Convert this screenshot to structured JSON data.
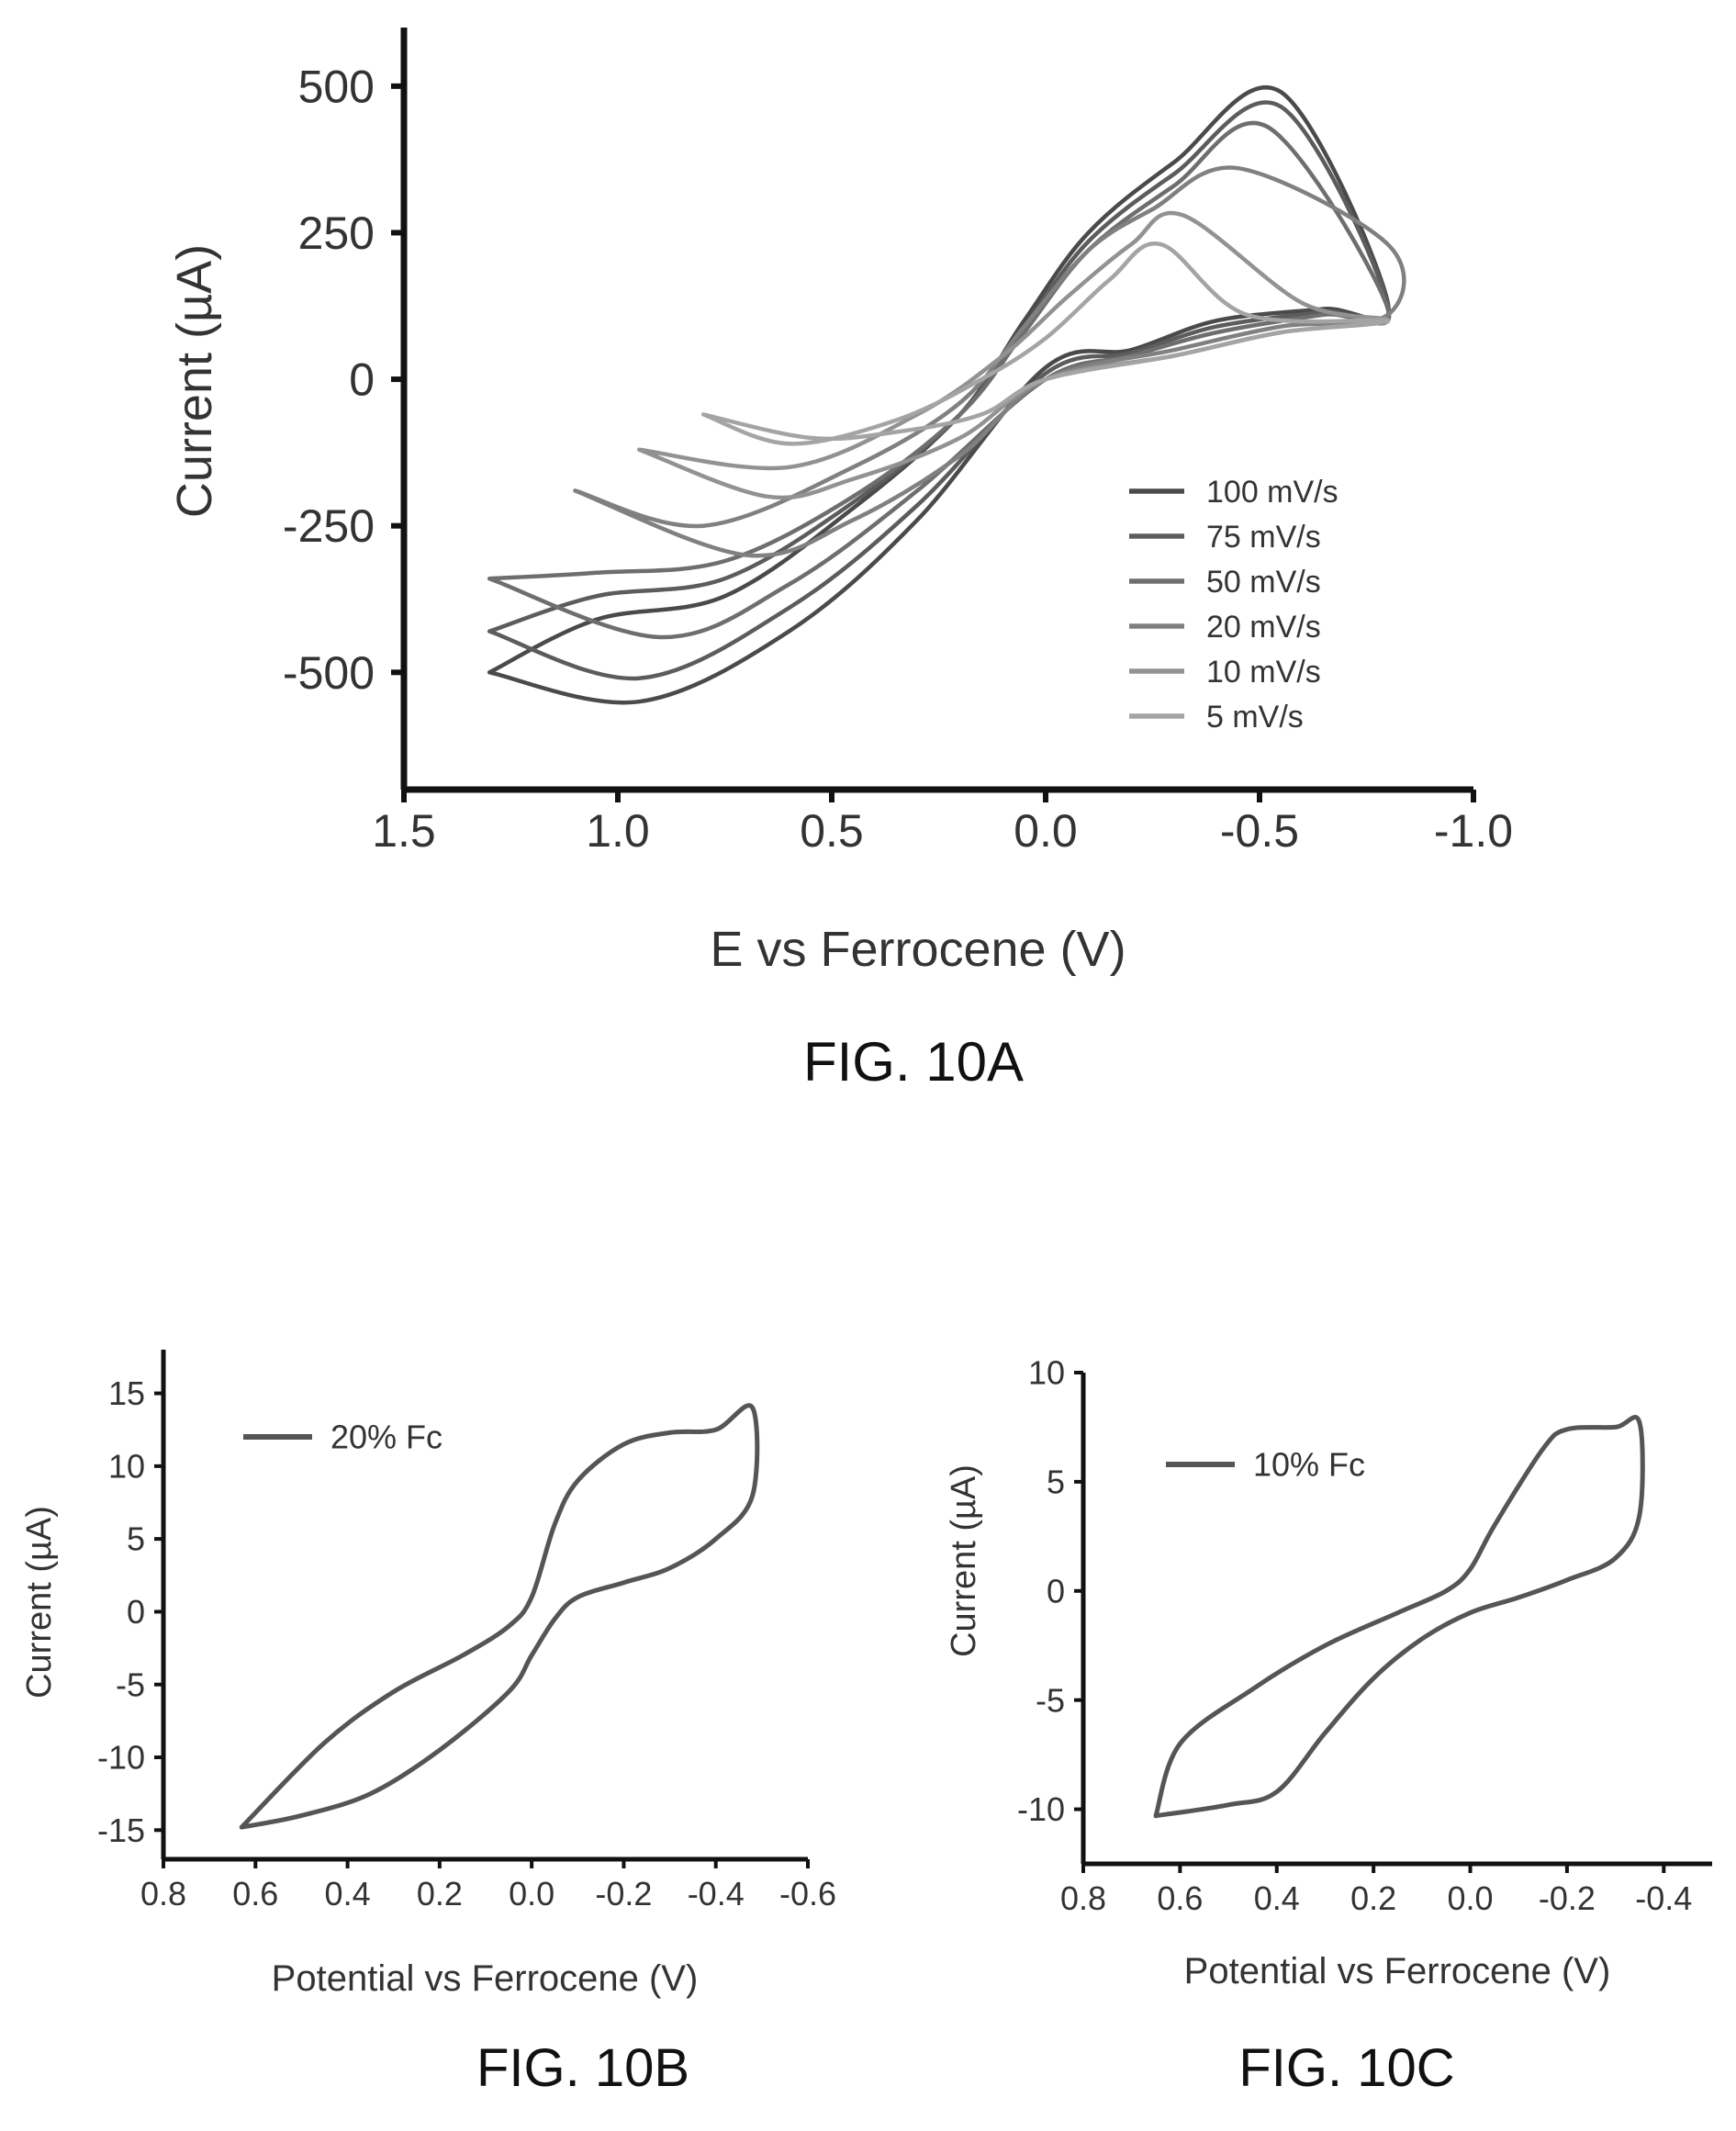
{
  "chart_data": [
    {
      "type": "line",
      "caption": "FIG. 10A",
      "xlabel": "E vs Ferrocene (V)",
      "ylabel": "Current (µA)",
      "xlim": [
        1.5,
        -1.0
      ],
      "ylim": [
        -700,
        600
      ],
      "x_ticks": [
        1.5,
        1.0,
        0.5,
        0.0,
        -0.5,
        -1.0
      ],
      "x_tick_labels": [
        "1.5",
        "1.0",
        "0.5",
        "0.0",
        "-0.5",
        "-1.0"
      ],
      "y_ticks": [
        500,
        250,
        0,
        -250,
        -500
      ],
      "y_tick_labels": [
        "500",
        "250",
        "0",
        "-250",
        "-500"
      ],
      "x_reversed": true,
      "grid": false,
      "legend_position": "lower-right",
      "colors": [
        "#4a4a4a",
        "#5c5c5c",
        "#6e6e6e",
        "#808080",
        "#929292",
        "#a4a4a4"
      ],
      "series": [
        {
          "name": "100 mV/s",
          "x": [
            1.3,
            0.95,
            0.6,
            0.3,
            0.0,
            -0.2,
            -0.4,
            -0.65,
            -0.8,
            -0.55,
            -0.3,
            -0.1,
            0.05,
            0.2,
            0.45,
            0.75,
            1.05,
            1.3
          ],
          "y": [
            -500,
            -550,
            -430,
            -240,
            20,
            50,
            100,
            120,
            130,
            490,
            370,
            250,
            100,
            -60,
            -220,
            -370,
            -410,
            -500
          ]
        },
        {
          "name": "75 mV/s",
          "x": [
            1.3,
            0.95,
            0.6,
            0.3,
            0.0,
            -0.2,
            -0.4,
            -0.65,
            -0.8,
            -0.55,
            -0.3,
            -0.1,
            0.05,
            0.2,
            0.45,
            0.75,
            1.05,
            1.3
          ],
          "y": [
            -430,
            -510,
            -390,
            -215,
            10,
            45,
            90,
            115,
            125,
            465,
            350,
            235,
            90,
            -60,
            -210,
            -340,
            -370,
            -430
          ]
        },
        {
          "name": "50 mV/s",
          "x": [
            1.3,
            0.9,
            0.6,
            0.3,
            0.0,
            -0.2,
            -0.4,
            -0.65,
            -0.8,
            -0.52,
            -0.3,
            -0.1,
            0.05,
            0.2,
            0.45,
            0.75,
            1.05,
            1.3
          ],
          "y": [
            -340,
            -440,
            -350,
            -190,
            0,
            40,
            80,
            110,
            120,
            430,
            330,
            220,
            80,
            -60,
            -200,
            -310,
            -330,
            -340
          ]
        },
        {
          "name": "20 mV/s",
          "x": [
            1.1,
            0.7,
            0.45,
            0.2,
            0.0,
            -0.3,
            -0.55,
            -0.8,
            -0.8,
            -0.45,
            -0.25,
            -0.1,
            0.05,
            0.2,
            0.45,
            0.8,
            1.1
          ],
          "y": [
            -190,
            -300,
            -240,
            -130,
            0,
            50,
            90,
            110,
            230,
            360,
            290,
            220,
            90,
            -40,
            -150,
            -250,
            -190
          ]
        },
        {
          "name": "10 mV/s",
          "x": [
            0.95,
            0.65,
            0.45,
            0.2,
            0.0,
            -0.3,
            -0.55,
            -0.8,
            -0.6,
            -0.32,
            -0.2,
            -0.05,
            0.1,
            0.3,
            0.6,
            0.95
          ],
          "y": [
            -120,
            -200,
            -170,
            -100,
            0,
            40,
            80,
            100,
            130,
            280,
            230,
            140,
            40,
            -60,
            -150,
            -120
          ]
        },
        {
          "name": "5 mV/s",
          "x": [
            0.8,
            0.55,
            0.35,
            0.15,
            0.0,
            -0.3,
            -0.55,
            -0.8,
            -0.47,
            -0.27,
            -0.15,
            0.0,
            0.15,
            0.35,
            0.6,
            0.8
          ],
          "y": [
            -60,
            -100,
            -90,
            -60,
            0,
            40,
            80,
            100,
            110,
            230,
            170,
            70,
            0,
            -70,
            -110,
            -60
          ]
        }
      ]
    },
    {
      "type": "line",
      "caption": "FIG. 10B",
      "xlabel": "Potential vs Ferrocene (V)",
      "ylabel": "Current (µA)",
      "xlim": [
        0.8,
        -0.6
      ],
      "ylim": [
        -17,
        18
      ],
      "x_ticks": [
        0.8,
        0.6,
        0.4,
        0.2,
        0.0,
        -0.2,
        -0.4,
        -0.6
      ],
      "x_tick_labels": [
        "0.8",
        "0.6",
        "0.4",
        "0.2",
        "0.0",
        "-0.2",
        "-0.4",
        "-0.6"
      ],
      "y_ticks": [
        15,
        10,
        5,
        0,
        -5,
        -10,
        -15
      ],
      "y_tick_labels": [
        "15",
        "10",
        "5",
        "0",
        "-5",
        "-10",
        "-15"
      ],
      "x_reversed": true,
      "grid": false,
      "legend_position": "top-left",
      "colors": [
        "#555555"
      ],
      "series": [
        {
          "name": "20% Fc",
          "x": [
            0.63,
            0.5,
            0.35,
            0.2,
            0.05,
            0.0,
            -0.05,
            -0.1,
            -0.2,
            -0.3,
            -0.4,
            -0.48,
            -0.48,
            -0.4,
            -0.3,
            -0.2,
            -0.1,
            -0.05,
            0.0,
            0.05,
            0.15,
            0.3,
            0.45,
            0.63
          ],
          "y": [
            -14.8,
            -14,
            -12.5,
            -9.5,
            -5.5,
            -3,
            -0.5,
            1,
            2,
            3,
            5,
            8,
            14,
            12.5,
            12.3,
            11.5,
            9,
            6,
            1,
            -1,
            -3,
            -5.5,
            -9,
            -14.8
          ]
        }
      ]
    },
    {
      "type": "line",
      "caption": "FIG. 10C",
      "xlabel": "Potential vs Ferrocene (V)",
      "ylabel": "Current (µA)",
      "xlim": [
        0.8,
        -0.5
      ],
      "ylim": [
        -12.5,
        10
      ],
      "x_ticks": [
        0.8,
        0.6,
        0.4,
        0.2,
        0.0,
        -0.2,
        -0.4
      ],
      "x_tick_labels": [
        "0.8",
        "0.6",
        "0.4",
        "0.2",
        "0.0",
        "-0.2",
        "-0.4"
      ],
      "y_ticks": [
        10,
        5,
        0,
        -5,
        -10
      ],
      "y_tick_labels": [
        "10",
        "5",
        "0",
        "-5",
        "-10"
      ],
      "x_reversed": true,
      "grid": false,
      "legend_position": "top-left",
      "colors": [
        "#555555"
      ],
      "series": [
        {
          "name": "10% Fc",
          "x": [
            0.65,
            0.5,
            0.4,
            0.3,
            0.2,
            0.1,
            0.0,
            -0.1,
            -0.2,
            -0.3,
            -0.35,
            -0.35,
            -0.3,
            -0.2,
            -0.15,
            -0.05,
            0.0,
            0.05,
            0.15,
            0.3,
            0.45,
            0.6,
            0.65
          ],
          "y": [
            -10.3,
            -9.8,
            -9.2,
            -6.5,
            -4,
            -2.2,
            -1,
            -0.3,
            0.5,
            1.5,
            3.5,
            7.7,
            7.5,
            7.4,
            6.5,
            3,
            1,
            0,
            -1,
            -2.5,
            -4.5,
            -7,
            -10.3
          ]
        }
      ]
    }
  ]
}
